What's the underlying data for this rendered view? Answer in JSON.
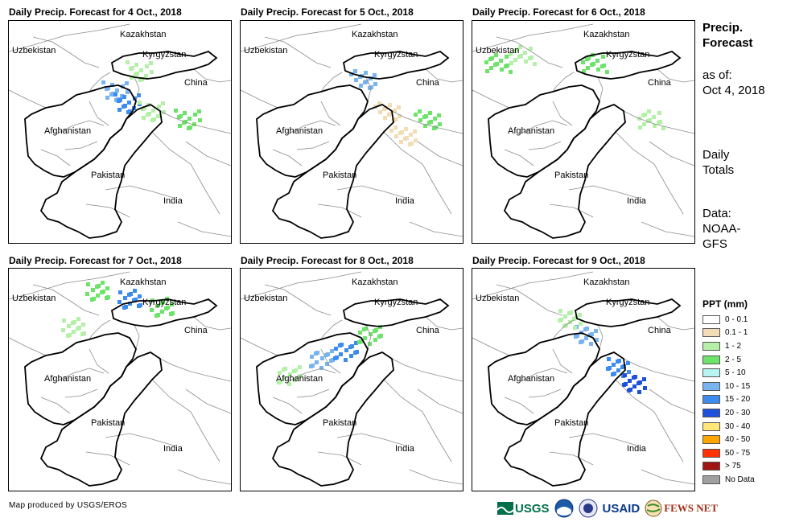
{
  "panels": [
    {
      "title": "Daily Precip. Forecast for 4 Oct., 2018"
    },
    {
      "title": "Daily Precip. Forecast for 5 Oct., 2018"
    },
    {
      "title": "Daily Precip. Forecast for 6 Oct., 2018"
    },
    {
      "title": "Daily Precip. Forecast for 7 Oct., 2018"
    },
    {
      "title": "Daily Precip. Forecast for 8 Oct., 2018"
    },
    {
      "title": "Daily Precip. Forecast for 9 Oct., 2018"
    }
  ],
  "map_labels": {
    "kazakhstan": "Kazakhstan",
    "uzbekistan": "Uzbekistan",
    "kyrgyzstan": "Kyrgyzstan",
    "china": "China",
    "afghanistan": "Afghanistan",
    "pakistan": "Pakistan",
    "india": "India"
  },
  "side": {
    "title_line1": "Precip.",
    "title_line2": "Forecast",
    "asof_line1": "as of:",
    "asof_line2": "Oct 4, 2018",
    "daily_line1": "Daily",
    "daily_line2": "Totals",
    "data_line1": "Data:",
    "data_line2": "NOAA-",
    "data_line3": "GFS"
  },
  "legend": {
    "title": "PPT (mm)",
    "items": [
      {
        "label": "0 - 0.1",
        "color": "#ffffff"
      },
      {
        "label": "0.1 - 1",
        "color": "#f2dcb5"
      },
      {
        "label": "1 - 2",
        "color": "#b4f0a8"
      },
      {
        "label": "2 - 5",
        "color": "#6ee36a"
      },
      {
        "label": "5 - 10",
        "color": "#b8f4f4"
      },
      {
        "label": "10 - 15",
        "color": "#78b4f0"
      },
      {
        "label": "15 - 20",
        "color": "#3c8cf0"
      },
      {
        "label": "20 - 30",
        "color": "#1e50dc"
      },
      {
        "label": "30 - 40",
        "color": "#ffe678"
      },
      {
        "label": "40 - 50",
        "color": "#ffa500"
      },
      {
        "label": "50 - 75",
        "color": "#ff3200"
      },
      {
        "label": "> 75",
        "color": "#a01414"
      },
      {
        "label": "No Data",
        "color": "#a0a0a0"
      }
    ]
  },
  "credit": "Map produced by USGS/EROS",
  "logos": {
    "usgs": "USGS",
    "usaid": "USAID",
    "fewsnet": "FEWS NET"
  }
}
